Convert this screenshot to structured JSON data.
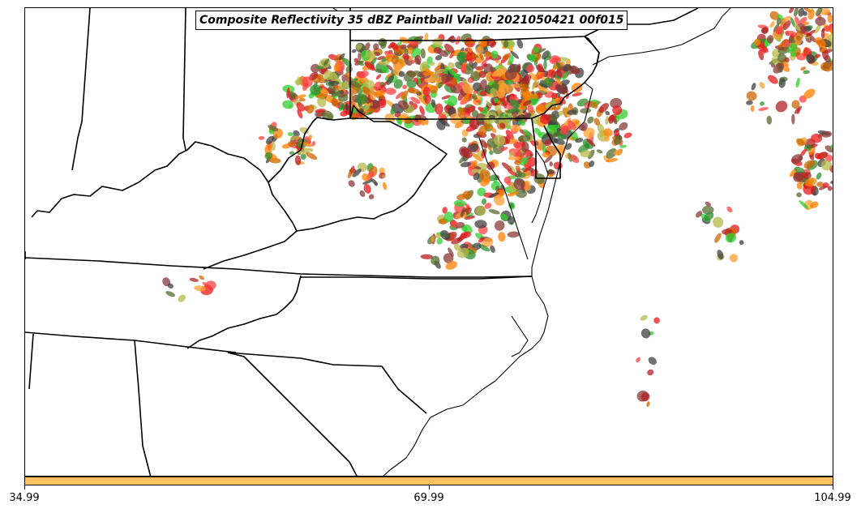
{
  "title": "Composite Reflectivity 35 dBZ Paintball Valid: 2021050421 00f015",
  "colorbar": {
    "color": "#ffc060",
    "ticks": [
      "34.99",
      "69.99",
      "104.99"
    ]
  },
  "member_colors": [
    "#e41a1c",
    "#ff7f00",
    "#ffa033",
    "#b22222",
    "#2f8f2f",
    "#32cd32",
    "#8b3a3a",
    "#556b2f",
    "#b5b84a",
    "#404040",
    "#ff4040",
    "#cc6600"
  ],
  "map": {
    "projection": "lambert-like",
    "region": "Mid-Atlantic / Southeast United States",
    "features": [
      "state-borders",
      "coastline",
      "paintball-reflectivity"
    ]
  }
}
